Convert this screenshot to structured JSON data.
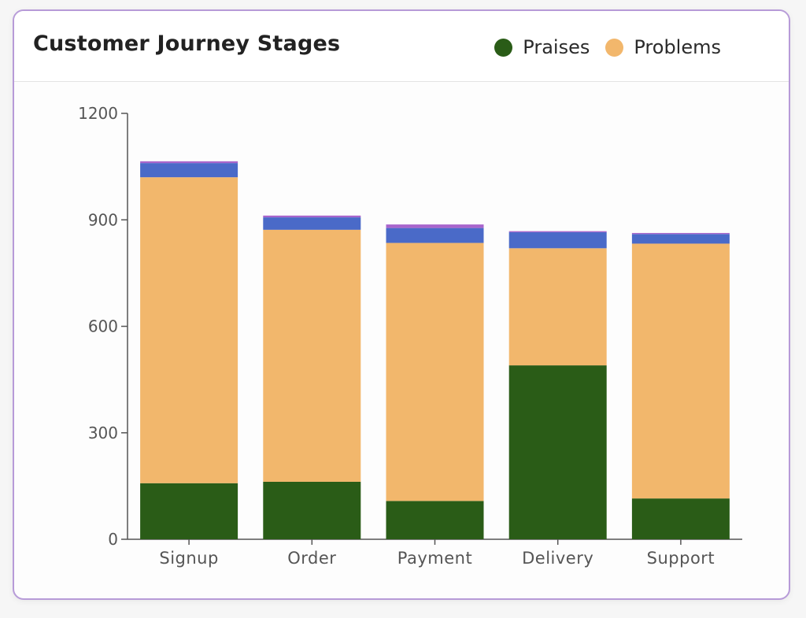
{
  "title": "Customer Journey Stages",
  "legend": [
    {
      "label": "Praises",
      "color": "#2a5c17"
    },
    {
      "label": "Problems",
      "color": "#f2b76c"
    }
  ],
  "chart_data": {
    "type": "bar",
    "stacked": true,
    "title": "Customer Journey Stages",
    "xlabel": "",
    "ylabel": "",
    "ylim": [
      0,
      1200
    ],
    "yticks": [
      0,
      300,
      600,
      900,
      1200
    ],
    "categories": [
      "Signup",
      "Order",
      "Payment",
      "Delivery",
      "Support"
    ],
    "series": [
      {
        "name": "Praises",
        "color": "#2a5c17",
        "values": [
          158,
          162,
          108,
          490,
          115
        ]
      },
      {
        "name": "Problems",
        "color": "#f2b76c",
        "values": [
          862,
          710,
          727,
          330,
          718
        ]
      },
      {
        "color": "#4a6ac8",
        "values": [
          40,
          35,
          42,
          45,
          27
        ]
      },
      {
        "color": "#a865cc",
        "values": [
          5,
          5,
          10,
          3,
          3
        ]
      }
    ],
    "legend_position": "top-right",
    "grid": false
  }
}
